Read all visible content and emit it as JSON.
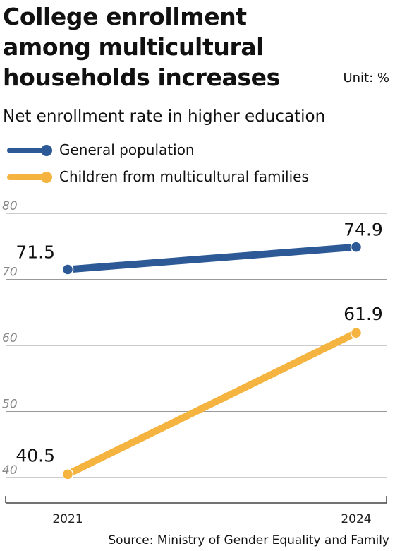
{
  "title": "College enrollment\namong multicultural\nhouseholds increases",
  "unit": "Unit: %",
  "subtitle": "Net enrollment rate in higher education",
  "source": "Source: Ministry of Gender Equality and Family",
  "colors": {
    "general": "#2d5a96",
    "multicultural": "#f4b43f",
    "grid": "#999999",
    "tick": "#888888"
  },
  "chart_data": {
    "type": "line",
    "x": [
      "2021",
      "2024"
    ],
    "ylim": [
      40,
      80
    ],
    "yticks": [
      "80",
      "70",
      "60",
      "50",
      "40"
    ],
    "grid": true,
    "legend_position": "top-left",
    "series": [
      {
        "name": "General population",
        "values": [
          71.5,
          74.9
        ],
        "labels": [
          "71.5",
          "74.9"
        ]
      },
      {
        "name": "Children from multicultural families",
        "values": [
          40.5,
          61.9
        ],
        "labels": [
          "40.5",
          "61.9"
        ]
      }
    ]
  }
}
